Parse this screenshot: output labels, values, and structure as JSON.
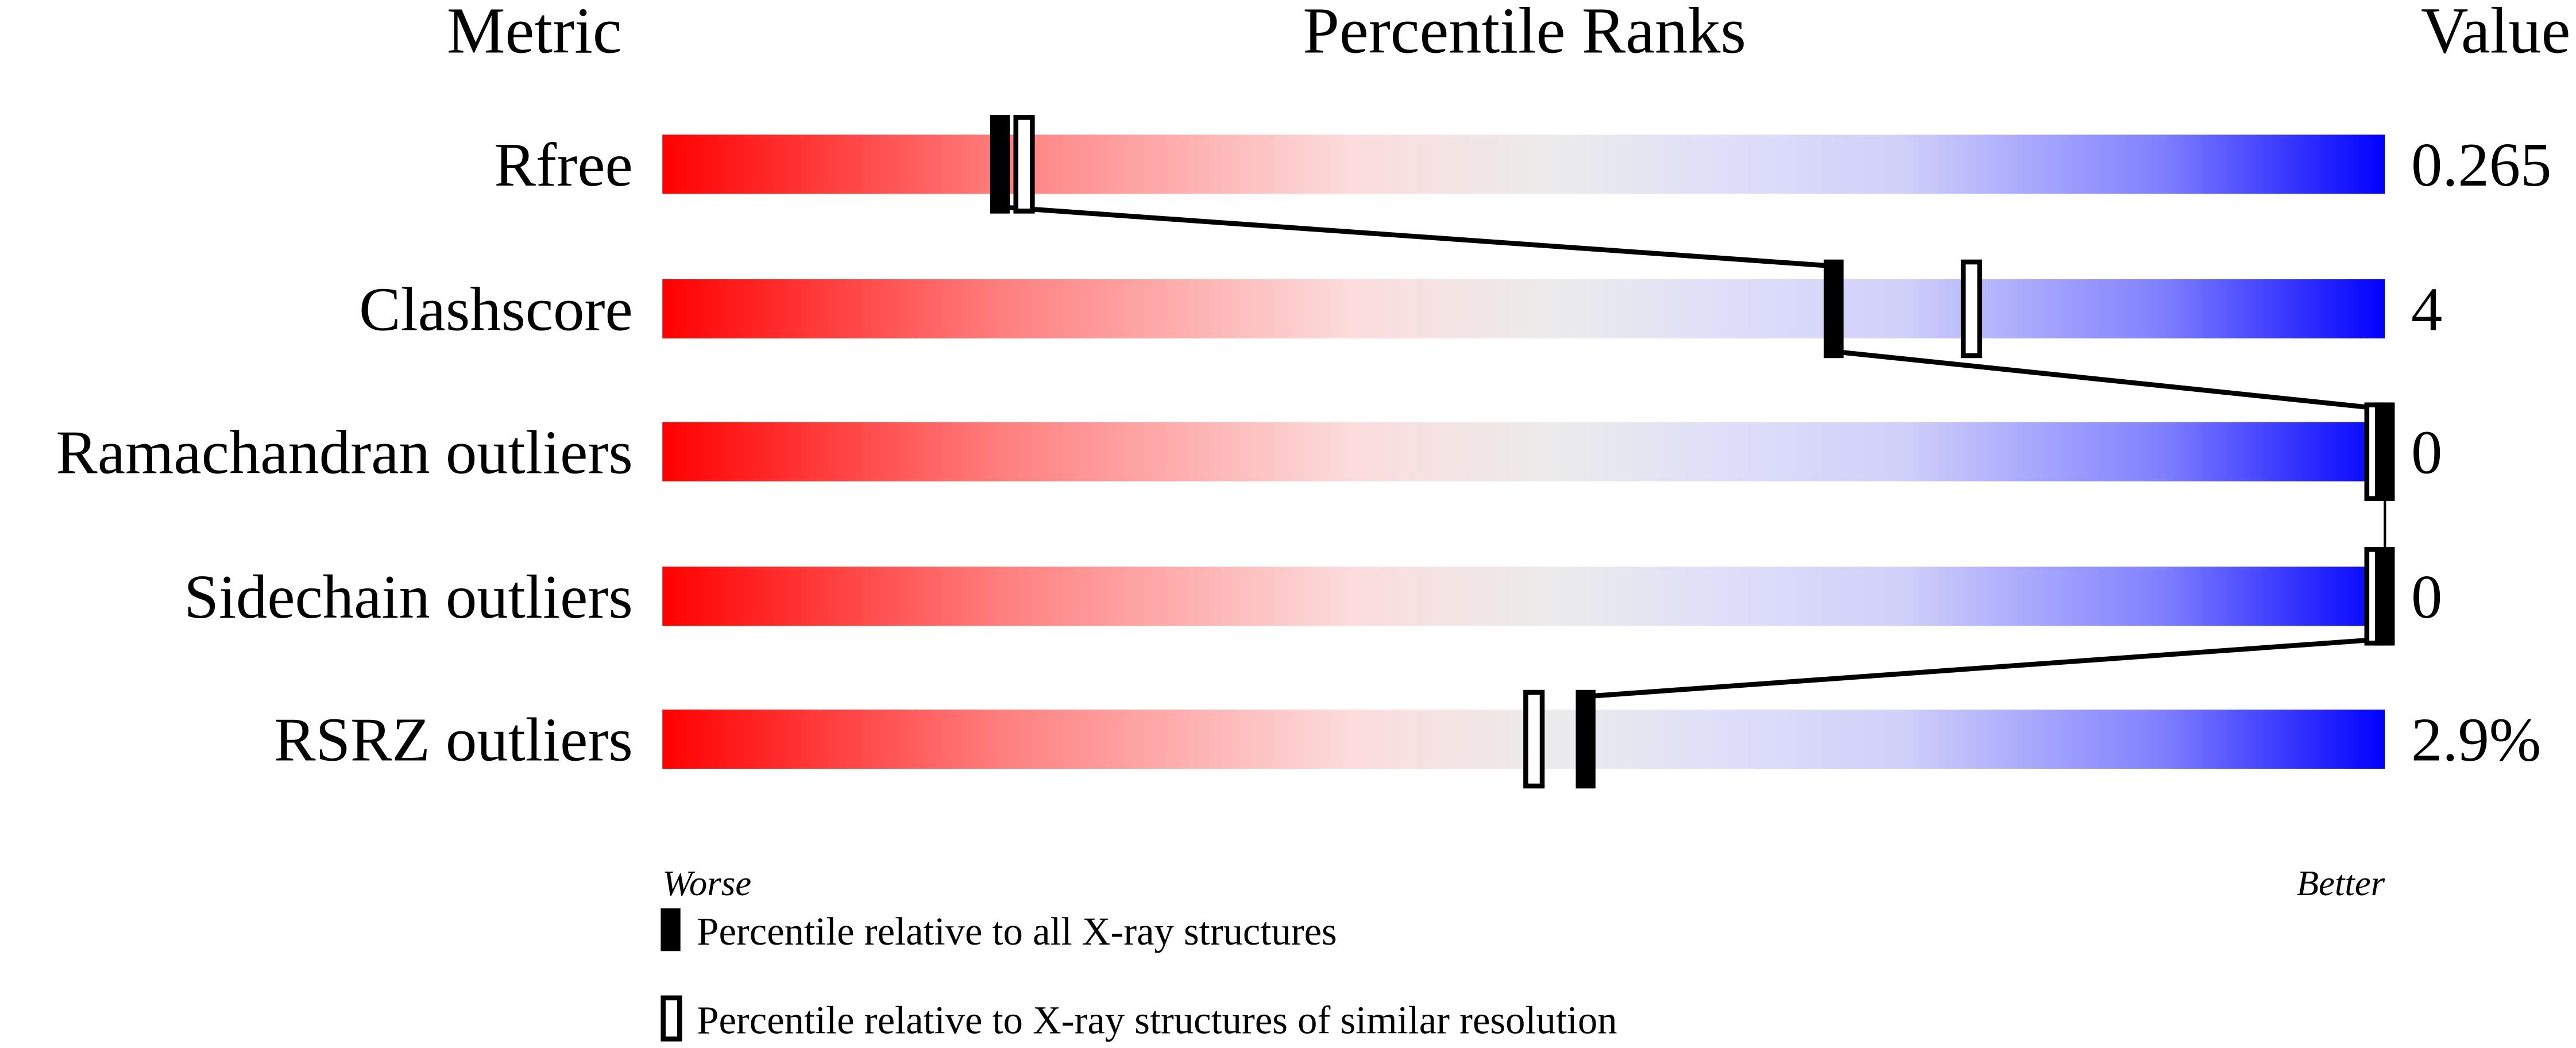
{
  "chart_data": {
    "type": "percentile-ranks",
    "headers": {
      "metric": "Metric",
      "ranks": "Percentile Ranks",
      "value": "Value"
    },
    "xlim": [
      0,
      100
    ],
    "axis_left_label": "Worse",
    "axis_right_label": "Better",
    "metrics": [
      {
        "name": "Rfree",
        "value": "0.265",
        "percentile_all": 19.6,
        "percentile_similar": 21
      },
      {
        "name": "Clashscore",
        "value": "4",
        "percentile_all": 68,
        "percentile_similar": 76
      },
      {
        "name": "Ramachandran outliers",
        "value": "0",
        "percentile_all": 100,
        "percentile_similar": 100
      },
      {
        "name": "Sidechain outliers",
        "value": "0",
        "percentile_all": 100,
        "percentile_similar": 100
      },
      {
        "name": "RSRZ outliers",
        "value": "2.9%",
        "percentile_all": 53.6,
        "percentile_similar": 50.6
      }
    ],
    "legend": {
      "all": "Percentile relative to all X-ray structures",
      "similar": "Percentile relative to X-ray structures of similar resolution"
    },
    "colors": {
      "worse": "#ff0000",
      "middle": "#ebebeb",
      "better": "#0000ff",
      "marker": "#000000"
    }
  }
}
